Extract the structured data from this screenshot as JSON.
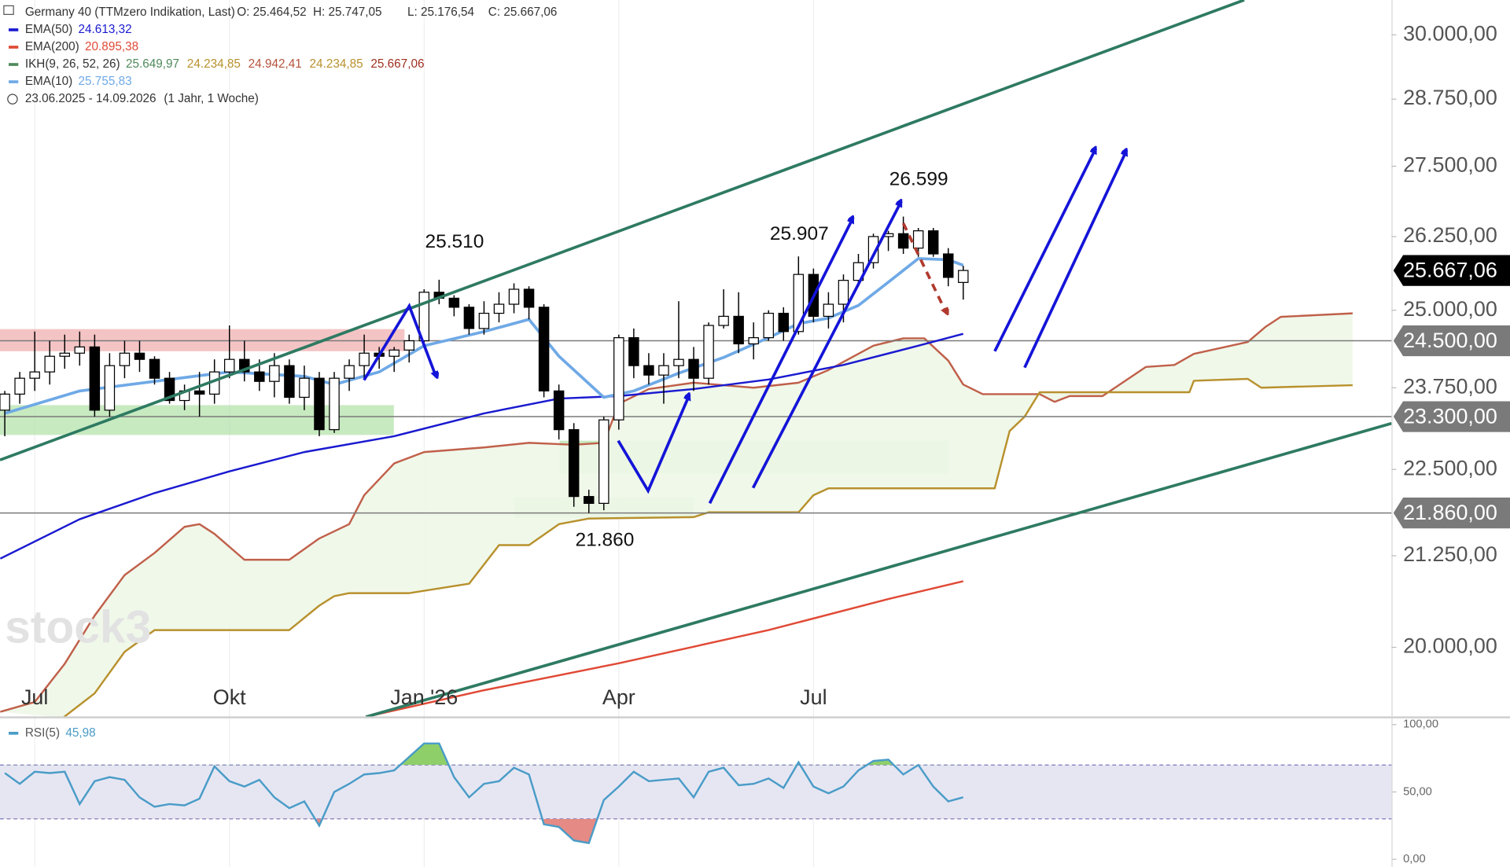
{
  "chart_data": {
    "type": "candlestick",
    "title": "Germany 40 (TTMzero Indikation, Last)",
    "ohlc_labels": [
      "O: 25.464,52",
      "H: 25.747,05",
      "L: 25.176,54",
      "C: 25.667,06"
    ],
    "date_range": "23.06.2025 - 14.09.2026",
    "period": "(1 Jahr, 1 Woche)",
    "watermark": "stock3",
    "log": true,
    "xgrid": true,
    "xlim": [
      -0.32,
      92.6
    ],
    "ylim": [
      19100,
      30700
    ],
    "xticks": [
      {
        "value": 2,
        "label": "Jul"
      },
      {
        "value": 15,
        "label": "Okt"
      },
      {
        "value": 28,
        "label": "Jan '26"
      },
      {
        "value": 41,
        "label": "Apr"
      },
      {
        "value": 54,
        "label": "Jul"
      }
    ],
    "yticks": [
      {
        "value": 20000,
        "label": "20.000,00"
      },
      {
        "value": 21250,
        "label": "21.250,00"
      },
      {
        "value": 22500,
        "label": "22.500,00"
      },
      {
        "value": 23750,
        "label": "23.750,00"
      },
      {
        "value": 25000,
        "label": "25.000,00"
      },
      {
        "value": 26250,
        "label": "26.250,00"
      },
      {
        "value": 27500,
        "label": "27.500,00"
      },
      {
        "value": 28750,
        "label": "28.750,00"
      },
      {
        "value": 30000,
        "label": "30.000,00"
      }
    ],
    "up_color": "#ffffff",
    "down_color": "#000000",
    "x": [
      0,
      1,
      2,
      3,
      4,
      5,
      6,
      7,
      8,
      9,
      10,
      11,
      12,
      13,
      14,
      15,
      16,
      17,
      18,
      19,
      20,
      21,
      22,
      23,
      24,
      25,
      26,
      27,
      28,
      29,
      30,
      31,
      32,
      33,
      34,
      35,
      36,
      37,
      38,
      39,
      40,
      41,
      42,
      43,
      44,
      45,
      46,
      47,
      48,
      49,
      50,
      51,
      52,
      53,
      54,
      55,
      56,
      57,
      58,
      59,
      60,
      61,
      62,
      63,
      64
    ],
    "open": [
      23400,
      23650,
      23900,
      24000,
      24250,
      24300,
      24400,
      23400,
      24100,
      24300,
      24200,
      23900,
      23550,
      23700,
      23650,
      24000,
      24200,
      24000,
      23850,
      24100,
      23600,
      23900,
      23100,
      23900,
      24100,
      24300,
      24250,
      24350,
      24500,
      25300,
      25200,
      25050,
      24700,
      24950,
      25100,
      25350,
      25050,
      23700,
      23100,
      22100,
      22000,
      23250,
      24550,
      24100,
      23950,
      24100,
      24200,
      23900,
      24750,
      24900,
      24450,
      24550,
      24950,
      24650,
      25600,
      24900,
      25100,
      25500,
      25800,
      26250,
      26300,
      26050,
      26350,
      25950,
      25464.52
    ],
    "high": [
      23700,
      24000,
      24650,
      24500,
      24600,
      24650,
      24600,
      24300,
      24500,
      24500,
      24250,
      24000,
      23800,
      24000,
      24200,
      24750,
      24500,
      24200,
      24300,
      24200,
      24100,
      24000,
      24000,
      24200,
      24600,
      24400,
      24400,
      24600,
      25350,
      25510,
      25250,
      25100,
      25150,
      25300,
      25450,
      25400,
      25100,
      23800,
      23200,
      22200,
      23300,
      24600,
      24700,
      24300,
      24300,
      25150,
      24400,
      24800,
      25350,
      25300,
      24800,
      25000,
      25050,
      25907,
      25700,
      25300,
      25600,
      25950,
      26300,
      26350,
      26599,
      26400,
      26400,
      26050,
      25747.05
    ],
    "low": [
      23000,
      23500,
      23700,
      23800,
      24050,
      24100,
      23300,
      23300,
      23900,
      24000,
      23800,
      23500,
      23400,
      23300,
      23500,
      23900,
      23850,
      23700,
      23600,
      23500,
      23400,
      23000,
      23050,
      23700,
      23900,
      24050,
      24000,
      24150,
      24400,
      25100,
      24900,
      24600,
      24600,
      24800,
      24950,
      24850,
      23600,
      22950,
      21950,
      21860,
      21900,
      23100,
      23900,
      23800,
      23500,
      23900,
      23700,
      23800,
      24700,
      24300,
      24200,
      24500,
      24500,
      24600,
      24800,
      24700,
      24800,
      25400,
      25700,
      26000,
      25950,
      25900,
      25900,
      25400,
      25176.54
    ],
    "close": [
      23650,
      23900,
      24000,
      24250,
      24300,
      24400,
      23400,
      24100,
      24300,
      24200,
      23900,
      23550,
      23700,
      23650,
      24000,
      24200,
      24000,
      23850,
      24100,
      23600,
      23900,
      23100,
      23900,
      24100,
      24300,
      24250,
      24350,
      24500,
      25300,
      25200,
      25050,
      24700,
      24950,
      25100,
      25350,
      25050,
      23700,
      23100,
      22100,
      22000,
      23250,
      24550,
      24100,
      23950,
      24100,
      24200,
      23900,
      24750,
      24900,
      24450,
      24550,
      24950,
      24650,
      25600,
      24900,
      25100,
      25500,
      25800,
      26250,
      26300,
      26050,
      26350,
      25950,
      25550,
      25667.06
    ],
    "series": [
      {
        "name": "EMA(50)",
        "color": "#1a1ad0",
        "value_labels": [
          "24.613,32"
        ],
        "x": [
          -0.3,
          5,
          10,
          15,
          20,
          26,
          32,
          37,
          41,
          46,
          51,
          56,
          61,
          64
        ],
        "values": [
          21210,
          21770,
          22150,
          22470,
          22760,
          23000,
          23350,
          23580,
          23620,
          23730,
          23880,
          24110,
          24420,
          24613.32
        ]
      },
      {
        "name": "EMA(200)",
        "color": "#e04a36",
        "value_labels": [
          "20.895,38"
        ],
        "x": [
          24.1,
          32,
          41,
          51,
          59,
          64
        ],
        "values": [
          19100,
          19440,
          19790,
          20230,
          20650,
          20895.38
        ]
      },
      {
        "name": "IKH(9, 26, 52, 26)",
        "color": "#4f8a5b",
        "value_labels": [
          "25.649,97",
          "24.234,85",
          "24.942,41",
          "24.234,85",
          "25.667,06"
        ],
        "value_label_colors": [
          "#4f8a5b",
          "#b8912d",
          "#b5523b",
          "#b8912d",
          "#a03020"
        ],
        "fill": "#eef7e8",
        "span_a": {
          "color": "#c0604a",
          "x": [
            -0.3,
            2,
            4,
            6,
            8,
            10,
            12,
            13,
            14,
            16,
            19,
            21,
            23,
            24,
            26,
            28,
            32,
            35,
            38,
            40,
            41,
            43,
            46,
            50,
            53,
            55,
            58,
            60,
            61.4,
            63,
            64,
            65.3,
            69.1,
            70.1,
            71.1,
            73.3,
            76.2,
            78.1,
            79.4,
            83,
            84.2,
            85.2,
            90
          ],
          "values": [
            19164,
            19290,
            19784,
            20425,
            20980,
            21290,
            21660,
            21700,
            21560,
            21194,
            21194,
            21494,
            21700,
            22120,
            22590,
            22760,
            22830,
            22900,
            22870,
            22900,
            23500,
            23730,
            23830,
            23750,
            23830,
            24030,
            24420,
            24540,
            24540,
            24180,
            23800,
            23650,
            23650,
            23530,
            23620,
            23620,
            24080,
            24110,
            24290,
            24480,
            24730,
            24890,
            24950
          ]
        },
        "span_b": {
          "color": "#b8912d",
          "x": [
            3.9,
            6,
            8,
            10,
            19,
            21,
            22,
            23,
            27,
            31,
            33,
            35,
            37,
            39,
            46,
            47,
            53,
            54,
            55,
            66.1,
            67.1,
            68.1,
            69.1,
            79.1,
            79.4,
            83,
            83.9,
            90
          ],
          "values": [
            19090,
            19400,
            19940,
            20230,
            20230,
            20560,
            20690,
            20730,
            20730,
            20860,
            21400,
            21400,
            21700,
            21780,
            21800,
            21870,
            21870,
            22120,
            22220,
            22220,
            23080,
            23300,
            23680,
            23680,
            23860,
            23890,
            23750,
            23790
          ]
        }
      },
      {
        "name": "EMA(10)",
        "color": "#6fa9e6",
        "value_labels": [
          "25.755,83"
        ],
        "x": [
          0,
          5,
          10,
          15,
          20,
          22,
          25,
          28,
          32,
          35,
          37,
          40,
          42,
          45,
          48,
          51,
          53,
          55,
          57,
          59,
          61,
          63,
          64
        ],
        "values": [
          23350,
          23700,
          23850,
          24000,
          23930,
          23800,
          24000,
          24420,
          24650,
          24850,
          24250,
          23600,
          23700,
          23980,
          24230,
          24550,
          24780,
          24870,
          25080,
          25470,
          25870,
          25850,
          25755.83
        ]
      }
    ],
    "price_lines": [
      {
        "value": 24500,
        "label": "24.500,00"
      },
      {
        "value": 23300,
        "label": "23.300,00"
      },
      {
        "value": 21860,
        "label": "21.860,00"
      }
    ],
    "price_line_color": "#7a7a7a",
    "last_price": {
      "value": 25667.06,
      "label": "25.667,06"
    },
    "last_price_color": "#000000",
    "annotations": [
      "25.510",
      "25.907",
      "26.599",
      "21.860"
    ],
    "rsi": {
      "name": "RSI(5)",
      "value_label": "45,98",
      "color": "#4a9cc7",
      "ylim": [
        0,
        100
      ],
      "yticks": [
        {
          "value": 0,
          "label": "0,00"
        },
        {
          "value": 50,
          "label": "50,00"
        },
        {
          "value": 100,
          "label": "100,00"
        }
      ],
      "bands": [
        30,
        70
      ],
      "band_fill": "#e6e6f3",
      "overbought_color": "#8fcf6a",
      "oversold_color": "#e58a84",
      "values": [
        64,
        56,
        65,
        64,
        65,
        41,
        58,
        61,
        59,
        46,
        39,
        41,
        40,
        45,
        69,
        58,
        54,
        59,
        46,
        38,
        43,
        25,
        50,
        56,
        63,
        64,
        66,
        76,
        86,
        86,
        61,
        46,
        56,
        58,
        68,
        63,
        26,
        24,
        14,
        12,
        44,
        54,
        65,
        58,
        59,
        60,
        46,
        65,
        68,
        55,
        56,
        60,
        53,
        72,
        54,
        49,
        54,
        66,
        73,
        74,
        63,
        70,
        54,
        43,
        45.98
      ]
    }
  }
}
